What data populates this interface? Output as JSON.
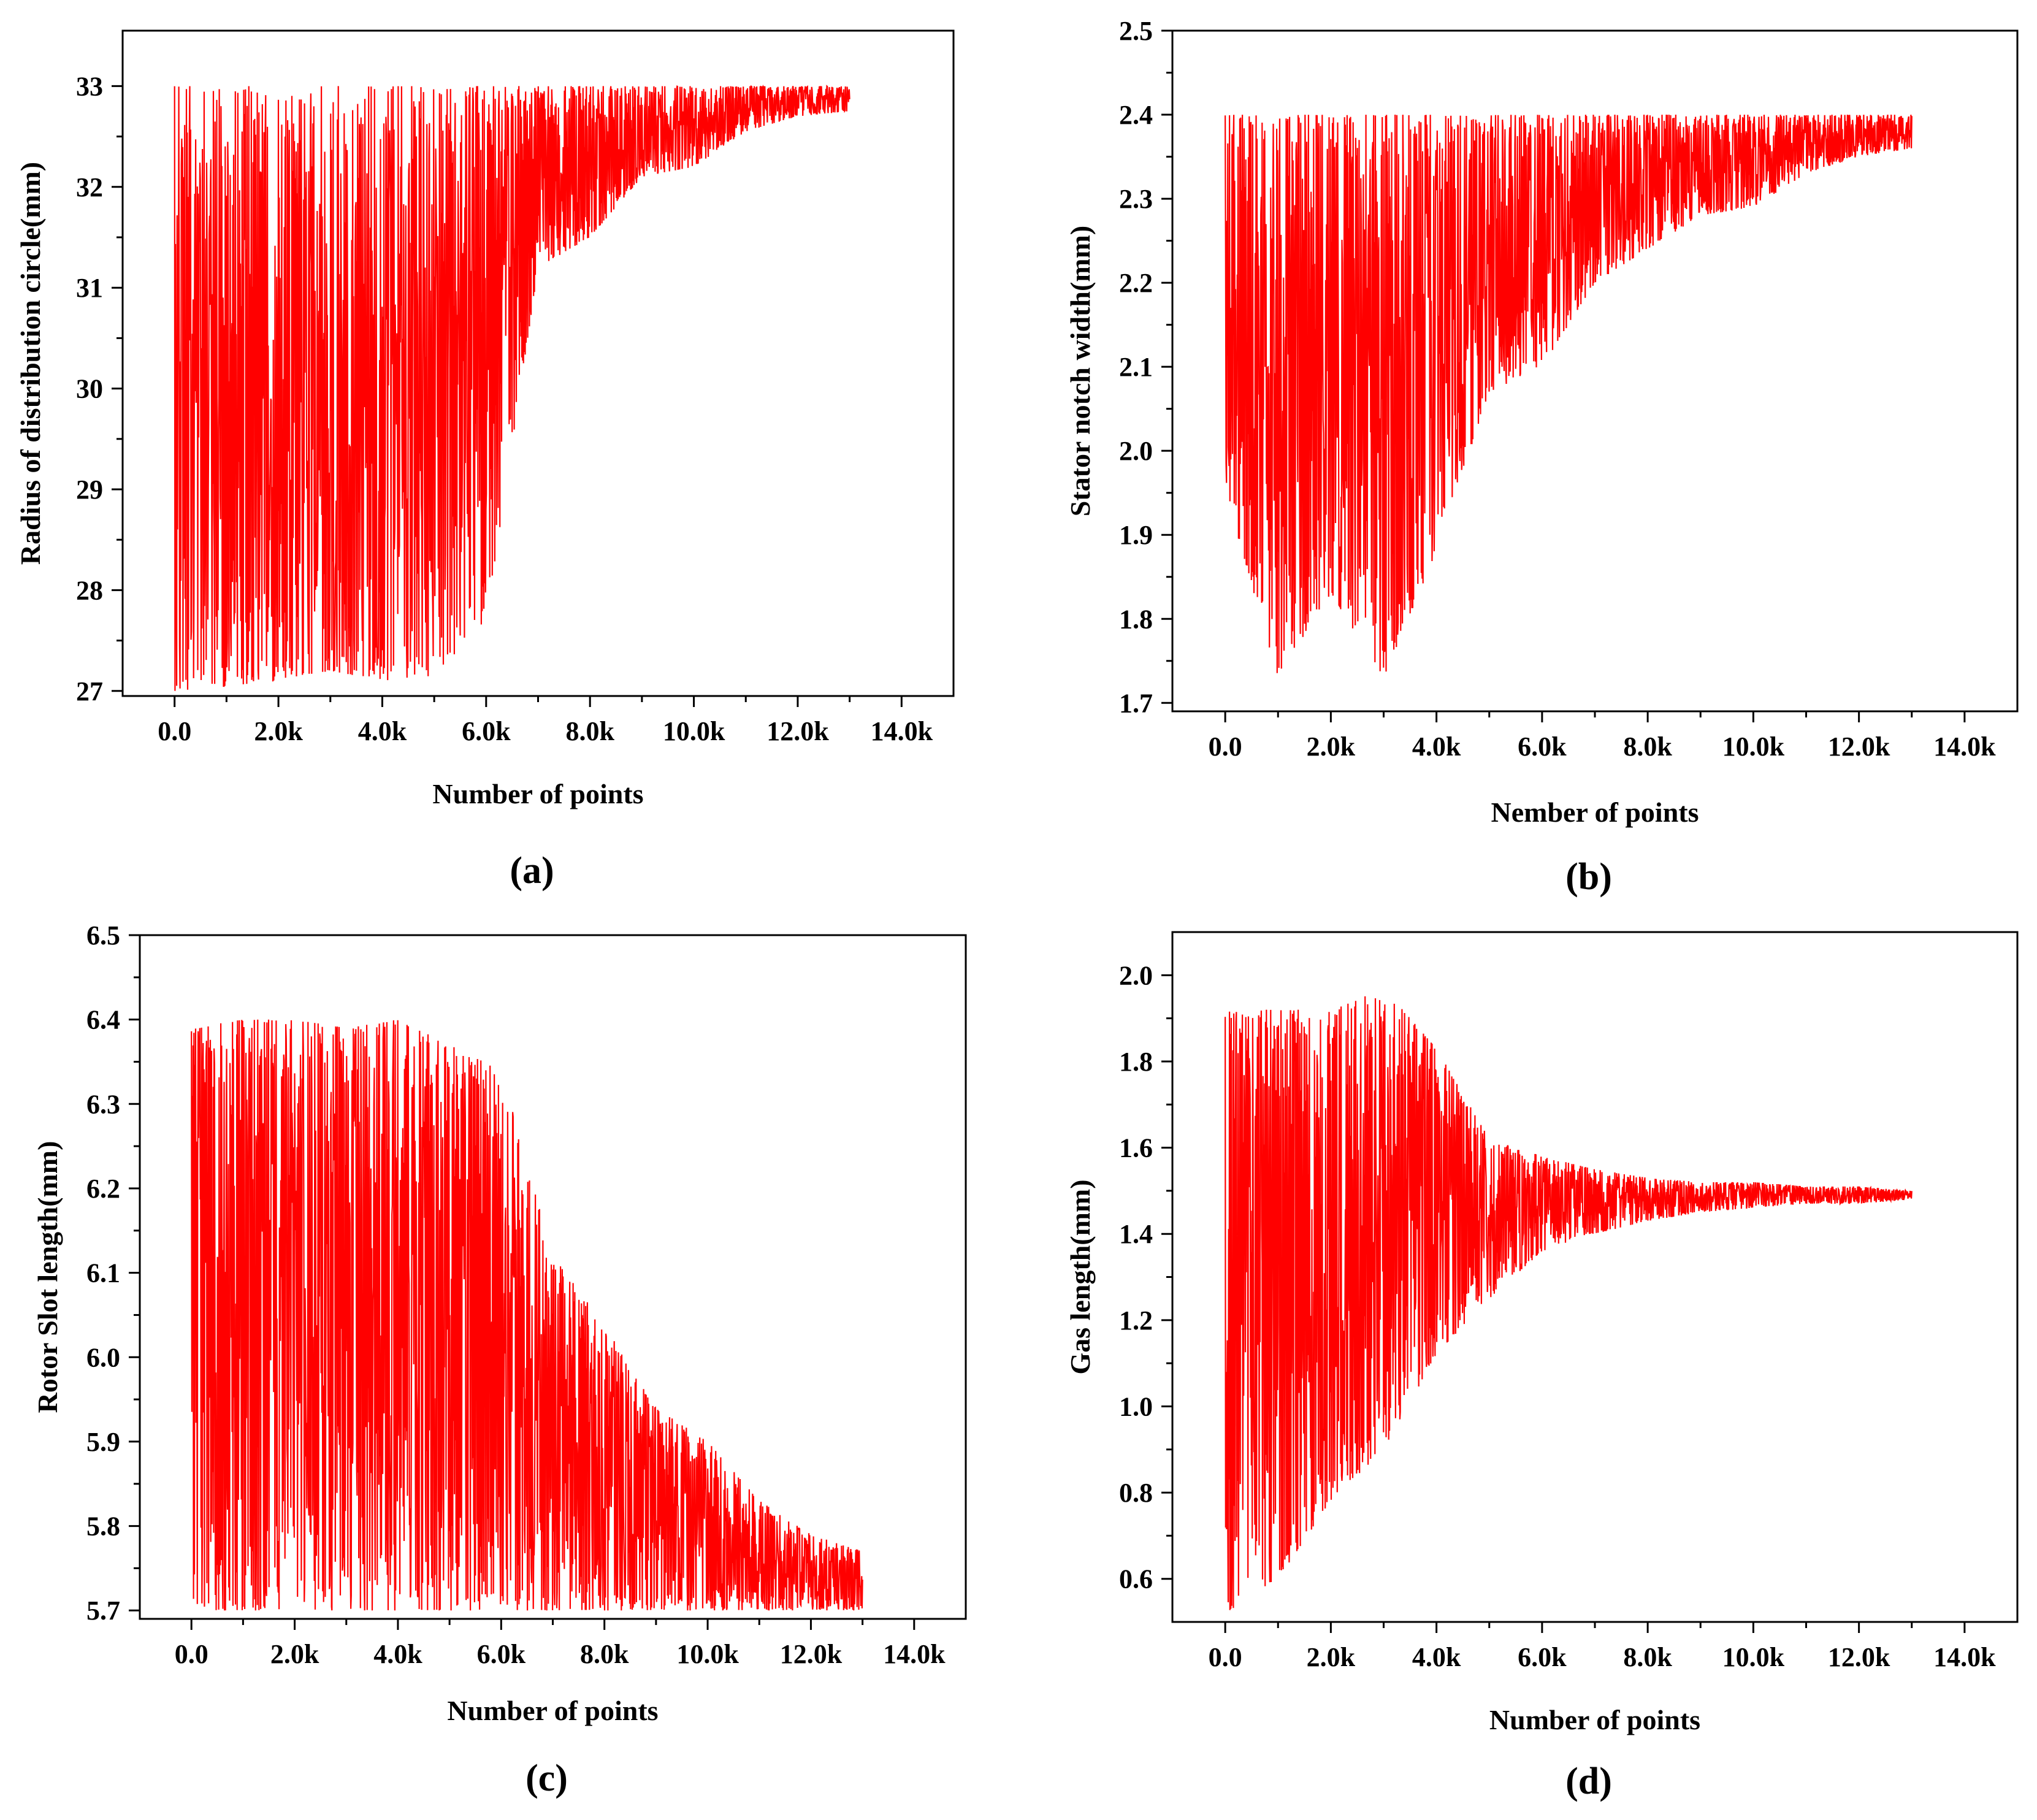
{
  "colors": {
    "series": "#ff0000",
    "axis": "#000000",
    "background": "#ffffff"
  },
  "chart_data": [
    {
      "id": "a",
      "type": "line",
      "panel_label": "(a)",
      "title": "",
      "xlabel": "Number of points",
      "ylabel": "Radius of distribution circle(mm)",
      "xlim": [
        -1000,
        15000
      ],
      "ylim": [
        26.95,
        33.55
      ],
      "xticks": [
        0,
        2000,
        4000,
        6000,
        8000,
        10000,
        12000,
        14000
      ],
      "xtick_labels": [
        "0.0",
        "2.0k",
        "4.0k",
        "6.0k",
        "8.0k",
        "10.0k",
        "12.0k",
        "14.0k"
      ],
      "yticks": [
        27,
        28,
        29,
        30,
        31,
        32,
        33
      ],
      "ytick_labels": [
        "27",
        "28",
        "29",
        "30",
        "31",
        "32",
        "33"
      ],
      "series": [
        {
          "name": "Radius of distribution circle",
          "x_range": [
            0,
            13000
          ],
          "envelope": {
            "x": [
              0,
              1000,
              2000,
              3000,
              4000,
              5000,
              6000,
              7000,
              8000,
              9000,
              10000,
              11000,
              12000,
              13000
            ],
            "min": [
              27.0,
              27.05,
              27.1,
              27.2,
              27.1,
              27.15,
              27.7,
              31.2,
              31.5,
              32.1,
              32.2,
              32.55,
              32.7,
              32.75
            ],
            "max": [
              33.0,
              33.0,
              33.0,
              33.0,
              33.0,
              33.0,
              33.0,
              33.0,
              33.0,
              33.0,
              33.0,
              33.0,
              33.0,
              33.0
            ]
          }
        }
      ]
    },
    {
      "id": "b",
      "type": "line",
      "panel_label": "(b)",
      "title": "",
      "xlabel": "Nember of points",
      "ylabel": "Stator notch width(mm)",
      "xlim": [
        -1000,
        15000
      ],
      "ylim": [
        1.69,
        2.5
      ],
      "xticks": [
        0,
        2000,
        4000,
        6000,
        8000,
        10000,
        12000,
        14000
      ],
      "xtick_labels": [
        "0.0",
        "2.0k",
        "4.0k",
        "6.0k",
        "8.0k",
        "10.0k",
        "12.0k",
        "14.0k"
      ],
      "yticks": [
        1.7,
        1.8,
        1.9,
        2.0,
        2.1,
        2.2,
        2.3,
        2.4,
        2.5
      ],
      "ytick_labels": [
        "1.7",
        "1.8",
        "1.9",
        "2.0",
        "2.1",
        "2.2",
        "2.3",
        "2.4",
        "2.5"
      ],
      "series": [
        {
          "name": "Stator notch width",
          "x_range": [
            0,
            13000
          ],
          "envelope": {
            "x": [
              0,
              1000,
              2000,
              3000,
              4000,
              5000,
              6000,
              7000,
              8000,
              9000,
              10000,
              11000,
              12000,
              13000
            ],
            "min": [
              1.95,
              1.73,
              1.83,
              1.73,
              1.88,
              2.07,
              2.1,
              2.2,
              2.24,
              2.28,
              2.29,
              2.33,
              2.35,
              2.36
            ],
            "max": [
              2.4,
              2.4,
              2.4,
              2.4,
              2.4,
              2.4,
              2.4,
              2.4,
              2.4,
              2.4,
              2.4,
              2.4,
              2.4,
              2.4
            ]
          }
        }
      ]
    },
    {
      "id": "c",
      "type": "line",
      "panel_label": "(c)",
      "title": "",
      "xlabel": "Number of points",
      "ylabel": "Rotor Slot length(mm)",
      "xlim": [
        -1000,
        15000
      ],
      "ylim": [
        5.69,
        6.5
      ],
      "xticks": [
        0,
        2000,
        4000,
        6000,
        8000,
        10000,
        12000,
        14000
      ],
      "xtick_labels": [
        "0.0",
        "2.0k",
        "4.0k",
        "6.0k",
        "8.0k",
        "10.0k",
        "12.0k",
        "14.0k"
      ],
      "yticks": [
        5.7,
        5.8,
        5.9,
        6.0,
        6.1,
        6.2,
        6.3,
        6.4,
        6.5
      ],
      "ytick_labels": [
        "5.7",
        "5.8",
        "5.9",
        "6.0",
        "6.1",
        "6.2",
        "6.3",
        "6.4",
        "6.5"
      ],
      "series": [
        {
          "name": "Rotor Slot length",
          "x_range": [
            0,
            13000
          ],
          "envelope": {
            "x": [
              0,
              1000,
              2000,
              3000,
              4000,
              5000,
              6000,
              7000,
              8000,
              9000,
              10000,
              11000,
              12000,
              13000
            ],
            "min": [
              5.7,
              5.7,
              5.7,
              5.7,
              5.7,
              5.7,
              5.7,
              5.7,
              5.7,
              5.7,
              5.7,
              5.7,
              5.7,
              5.7
            ],
            "max": [
              6.39,
              6.4,
              6.4,
              6.39,
              6.4,
              6.37,
              6.34,
              6.12,
              6.04,
              5.94,
              5.9,
              5.83,
              5.79,
              5.77
            ]
          }
        }
      ]
    },
    {
      "id": "d",
      "type": "line",
      "panel_label": "(d)",
      "title": "",
      "xlabel": "Number of points",
      "ylabel": "Gas length(mm)",
      "xlim": [
        -1000,
        15000
      ],
      "ylim": [
        0.5,
        2.1
      ],
      "xticks": [
        0,
        2000,
        4000,
        6000,
        8000,
        10000,
        12000,
        14000
      ],
      "xtick_labels": [
        "0.0",
        "2.0k",
        "4.0k",
        "6.0k",
        "8.0k",
        "10.0k",
        "12.0k",
        "14.0k"
      ],
      "yticks": [
        0.6,
        0.8,
        1.0,
        1.2,
        1.4,
        1.6,
        1.8,
        2.0
      ],
      "ytick_labels": [
        "0.6",
        "0.8",
        "1.0",
        "1.2",
        "1.4",
        "1.6",
        "1.8",
        "2.0"
      ],
      "series": [
        {
          "name": "Gas length",
          "x_range": [
            0,
            13000
          ],
          "envelope": {
            "x": [
              0,
              1000,
              2000,
              3000,
              4000,
              5000,
              6000,
              7000,
              8000,
              9000,
              10000,
              11000,
              12000,
              13000
            ],
            "min": [
              0.52,
              0.6,
              0.78,
              0.9,
              1.12,
              1.25,
              1.36,
              1.4,
              1.43,
              1.45,
              1.46,
              1.47,
              1.47,
              1.48
            ],
            "max": [
              1.92,
              1.92,
              1.92,
              1.97,
              1.83,
              1.62,
              1.58,
              1.55,
              1.53,
              1.52,
              1.52,
              1.51,
              1.51,
              1.5
            ]
          }
        }
      ]
    }
  ]
}
